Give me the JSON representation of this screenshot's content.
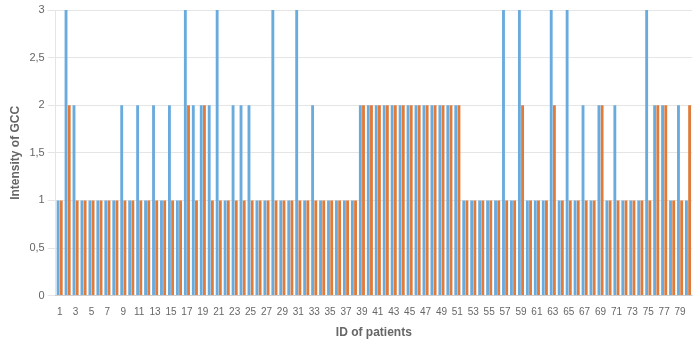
{
  "chart_data": {
    "type": "bar",
    "x_label": "ID of patients",
    "y_label": "Intensity of GCC",
    "categories": [
      "1",
      null,
      "3",
      null,
      "5",
      null,
      "7",
      null,
      "9",
      null,
      "11",
      null,
      "13",
      null,
      "15",
      null,
      "17",
      null,
      "19",
      null,
      "21",
      null,
      "23",
      null,
      "25",
      null,
      "27",
      null,
      "29",
      null,
      "31",
      null,
      "33",
      null,
      "35",
      null,
      "37",
      null,
      "39",
      null,
      "41",
      null,
      "43",
      null,
      "45",
      null,
      "47",
      null,
      "49",
      null,
      "51",
      null,
      "53",
      null,
      "55",
      null,
      "57",
      null,
      "59",
      null,
      "61",
      null,
      "63",
      null,
      "65",
      null,
      "67",
      null,
      "69",
      null,
      "71",
      null,
      "73",
      null,
      "75",
      null,
      "77",
      null,
      "79",
      null
    ],
    "series": [
      {
        "color": "#6AABDE",
        "values": [
          1,
          3,
          2,
          1,
          1,
          1,
          1,
          1,
          2,
          1,
          2,
          1,
          2,
          1,
          2,
          1,
          3,
          2,
          2,
          2,
          3,
          1,
          2,
          2,
          2,
          1,
          1,
          3,
          1,
          1,
          3,
          1,
          2,
          1,
          1,
          1,
          1,
          1,
          2,
          2,
          2,
          2,
          2,
          2,
          2,
          2,
          2,
          2,
          2,
          2,
          2,
          1,
          1,
          1,
          1,
          1,
          3,
          1,
          3,
          1,
          1,
          1,
          3,
          1,
          3,
          1,
          2,
          1,
          2,
          1,
          2,
          1,
          1,
          1,
          3,
          2,
          2,
          1,
          2,
          1
        ]
      },
      {
        "color": "#E07B3A",
        "values": [
          1,
          2,
          1,
          1,
          1,
          1,
          1,
          1,
          1,
          1,
          1,
          1,
          1,
          1,
          1,
          1,
          2,
          1,
          2,
          1,
          1,
          1,
          1,
          1,
          1,
          1,
          1,
          1,
          1,
          1,
          1,
          1,
          1,
          1,
          1,
          1,
          1,
          1,
          2,
          2,
          2,
          2,
          2,
          2,
          2,
          2,
          2,
          2,
          2,
          2,
          2,
          1,
          1,
          1,
          1,
          1,
          1,
          1,
          2,
          1,
          1,
          1,
          2,
          1,
          1,
          1,
          1,
          1,
          2,
          1,
          1,
          1,
          1,
          1,
          1,
          2,
          2,
          1,
          1,
          2
        ]
      }
    ],
    "ylim": [
      0,
      3
    ],
    "yticks": [
      0,
      {
        "value": 0.5,
        "label": "0,5"
      },
      1,
      {
        "value": 1.5,
        "label": "1,5"
      },
      2,
      {
        "value": 2.5,
        "label": "2,5"
      },
      3
    ],
    "grid": true
  }
}
